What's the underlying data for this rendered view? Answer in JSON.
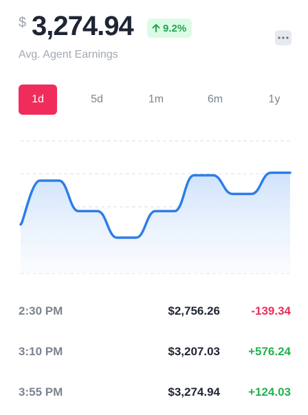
{
  "header": {
    "currency": "$",
    "amount": "3,274.94",
    "change": "9.2%",
    "subtitle": "Avg. Agent Earnings"
  },
  "tabs": {
    "items": [
      "1d",
      "5d",
      "1m",
      "6m",
      "1y"
    ],
    "active": 0
  },
  "chart_data": {
    "type": "line",
    "color": "#2b7de9",
    "values": [
      37,
      70,
      70,
      47,
      47,
      27,
      27,
      47,
      47,
      74,
      74,
      60,
      60,
      76,
      76
    ],
    "ylim": [
      0,
      100
    ]
  },
  "table": {
    "rows": [
      [
        "2:30 PM",
        "$2,756.26",
        "-139.34"
      ],
      [
        "3:10 PM",
        "$3,207.03",
        "+576.24"
      ],
      [
        "3:55 PM",
        "$3,274.94",
        "+124.03"
      ]
    ]
  }
}
